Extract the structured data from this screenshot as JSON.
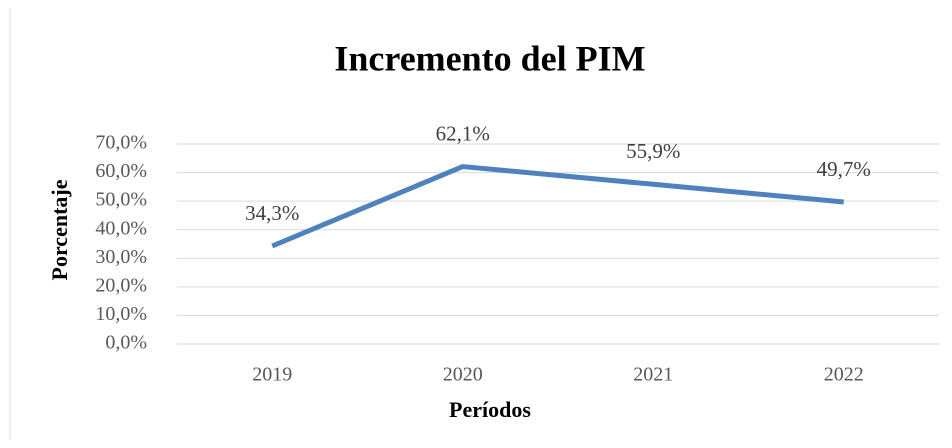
{
  "chart_data": {
    "type": "line",
    "title": "Incremento del PIM",
    "x_label": "Períodos",
    "y_label": "Porcentaje",
    "categories": [
      "2019",
      "2020",
      "2021",
      "2022"
    ],
    "series": [
      {
        "name": "Incremento",
        "color": "#4f81bd",
        "values": [
          34.3,
          62.1,
          55.9,
          49.7
        ],
        "value_labels": [
          "34,3%",
          "62,1%",
          "55,9%",
          "49,7%"
        ]
      }
    ],
    "ylim": [
      0,
      70
    ],
    "yticks": [
      {
        "value": 0,
        "label": "0,0%"
      },
      {
        "value": 10,
        "label": "10,0%"
      },
      {
        "value": 20,
        "label": "20,0%"
      },
      {
        "value": 30,
        "label": "30,0%"
      },
      {
        "value": 40,
        "label": "40,0%"
      },
      {
        "value": 50,
        "label": "50,0%"
      },
      {
        "value": 60,
        "label": "60,0%"
      },
      {
        "value": 70,
        "label": "70,0%"
      }
    ],
    "grid": true
  }
}
